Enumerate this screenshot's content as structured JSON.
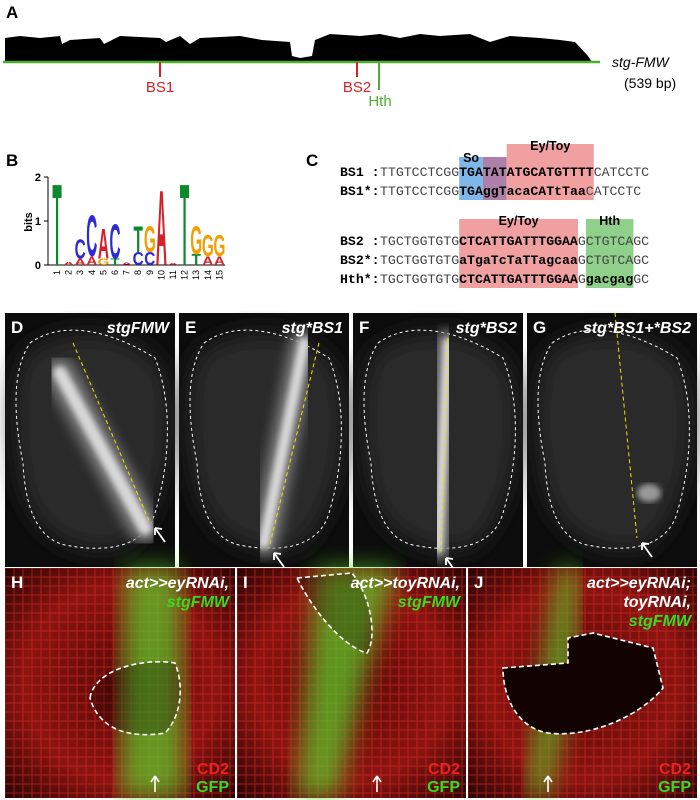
{
  "panel_a": {
    "label": "A",
    "construct": "stg-FMW",
    "length": "(539 bp)",
    "sites": [
      "BS1",
      "BS2",
      "Hth"
    ]
  },
  "panel_b": {
    "label": "B",
    "y_label": "bits",
    "ylim": [
      0,
      2
    ],
    "yticks": [
      0,
      1,
      2
    ],
    "positions": [
      "1",
      "2",
      "3",
      "4",
      "5",
      "6",
      "7",
      "8",
      "9",
      "10",
      "11",
      "12",
      "13",
      "14",
      "15"
    ],
    "logo": [
      [
        {
          "letter": "T",
          "bits": 1.9
        }
      ],
      [
        {
          "letter": "A",
          "bits": 0.08
        }
      ],
      [
        {
          "letter": "A",
          "bits": 0.15
        },
        {
          "letter": "C",
          "bits": 0.45
        }
      ],
      [
        {
          "letter": "A",
          "bits": 0.2
        },
        {
          "letter": "C",
          "bits": 0.95
        }
      ],
      [
        {
          "letter": "G",
          "bits": 0.15
        },
        {
          "letter": "A",
          "bits": 0.7
        }
      ],
      [
        {
          "letter": "T",
          "bits": 0.15
        },
        {
          "letter": "C",
          "bits": 0.8
        }
      ],
      [
        {
          "letter": "A",
          "bits": 0.06
        }
      ],
      [
        {
          "letter": "C",
          "bits": 0.3
        },
        {
          "letter": "T",
          "bits": 0.6
        }
      ],
      [
        {
          "letter": "C",
          "bits": 0.3
        },
        {
          "letter": "G",
          "bits": 0.6
        }
      ],
      [
        {
          "letter": "A",
          "bits": 1.75
        }
      ],
      [
        {
          "letter": "A",
          "bits": 0.05
        }
      ],
      [
        {
          "letter": "T",
          "bits": 1.9
        }
      ],
      [
        {
          "letter": "T",
          "bits": 0.25
        },
        {
          "letter": "G",
          "bits": 0.65
        }
      ],
      [
        {
          "letter": "A",
          "bits": 0.2
        },
        {
          "letter": "G",
          "bits": 0.5
        }
      ],
      [
        {
          "letter": "A",
          "bits": 0.2
        },
        {
          "letter": "G",
          "bits": 0.5
        }
      ]
    ]
  },
  "panel_c": {
    "label": "C",
    "groups": [
      {
        "headers": [
          "So",
          "Ey/Toy"
        ],
        "rows": [
          {
            "name": "BS1 :",
            "segments": [
              "TTGTCCTCGG",
              "TGA",
              "TAT",
              "ATGCATGTTTT",
              "CATCCTC"
            ]
          },
          {
            "name": "BS1*:",
            "segments": [
              "TTGTCCTCGG",
              "TGA",
              "ggT",
              "acaCATtTaa",
              "CATCCTC"
            ]
          }
        ]
      },
      {
        "headers": [
          "Ey/Toy",
          "Hth"
        ],
        "rows": [
          {
            "name": "BS2 :",
            "segments": [
              "TGCTGGTGTG",
              "CTCATTGATTTGGAA",
              "G",
              "CTGTCA",
              "GC"
            ]
          },
          {
            "name": "BS2*:",
            "segments": [
              "TGCTGGTGTG",
              "aTgaTcTaTTagcaa",
              "G",
              "CTGTCA",
              "GC"
            ]
          },
          {
            "name": "Hth*:",
            "segments": [
              "TGCTGGTGTG",
              "CTCATTGATTTGGAA",
              "G",
              "gacgag",
              "GC"
            ]
          }
        ]
      }
    ]
  },
  "disc_panels": [
    {
      "label": "D",
      "title": "stgFMW"
    },
    {
      "label": "E",
      "title": "stg*BS1"
    },
    {
      "label": "F",
      "title": "stg*BS2"
    },
    {
      "label": "G",
      "title": "stg*BS1+*BS2"
    }
  ],
  "stain_panels": [
    {
      "label": "H",
      "lines": [
        "act>>eyRNAi,"
      ],
      "reporter": "stgFMW",
      "channels": [
        "CD2",
        "GFP"
      ]
    },
    {
      "label": "I",
      "lines": [
        "act>>toyRNAi,"
      ],
      "reporter": "stgFMW",
      "channels": [
        "CD2",
        "GFP"
      ]
    },
    {
      "label": "J",
      "lines": [
        "act>>eyRNAi;",
        "toyRNAi,"
      ],
      "reporter": "stgFMW",
      "channels": [
        "CD2",
        "GFP"
      ]
    }
  ]
}
